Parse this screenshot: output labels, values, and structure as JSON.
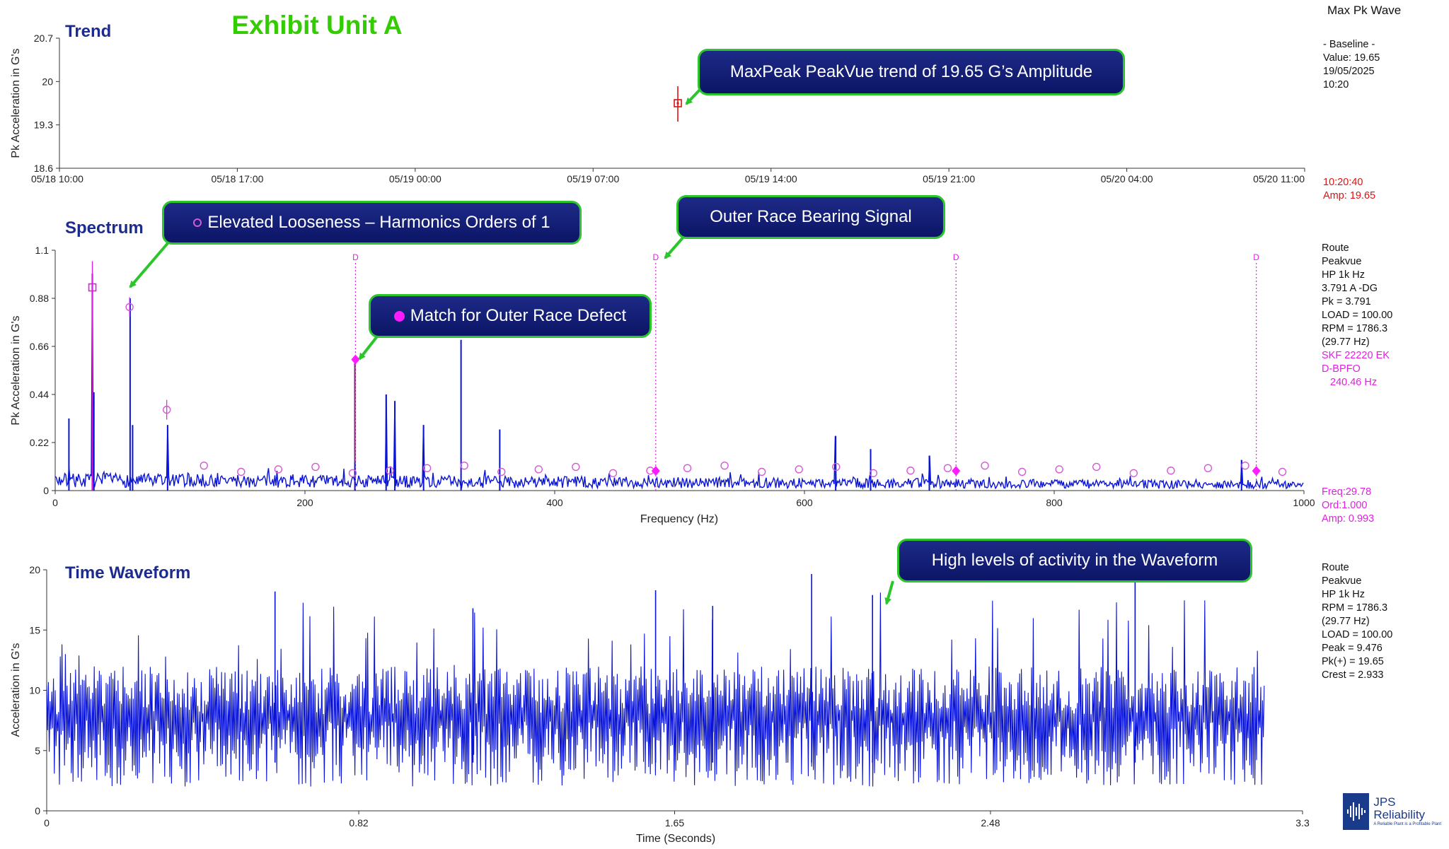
{
  "exhibit_title": "Exhibit Unit A",
  "colors": {
    "exhibit": "#33cc00",
    "panel_title": "#1b2b8f",
    "series": "#0a14d6",
    "magenta": "#e020e0",
    "red": "#dd1111",
    "callout_border": "#2bc62b",
    "arrow": "#2bc62b"
  },
  "trend": {
    "title": "Trend",
    "ylabel": "Pk Acceleration in G's",
    "right_header": "Max Pk Wave",
    "baseline_lines": [
      "- Baseline -",
      "Value: 19.65",
      "19/05/2025",
      "10:20"
    ],
    "cursor_lines": [
      "10:20:40",
      "Amp: 19.65"
    ]
  },
  "spectrum": {
    "title": "Spectrum",
    "xlabel": "Frequency (Hz)",
    "ylabel": "Pk Acceleration in G's",
    "info_lines": [
      "Route",
      "Peakvue",
      "HP 1k Hz",
      "3.791 A -DG",
      "Pk = 3.791",
      "LOAD = 100.00",
      "RPM = 1786.3",
      "(29.77 Hz)"
    ],
    "bearing_lines": [
      "SKF 22220 EK",
      "D-BPFO",
      "240.46 Hz"
    ],
    "cursor_lines": [
      "Freq:29.78",
      "Ord:1.000",
      "Amp: 0.993"
    ],
    "fault_marker_label": "D"
  },
  "waveform": {
    "title": "Time Waveform",
    "xlabel": "Time (Seconds)",
    "ylabel": "Acceleration in G's",
    "info_lines": [
      "Route",
      "Peakvue",
      "HP 1k Hz",
      "RPM = 1786.3",
      "(29.77 Hz)",
      "LOAD = 100.00",
      "Peak = 9.476",
      "Pk(+) = 19.65",
      "Crest = 2.933"
    ]
  },
  "callouts": {
    "trend": "MaxPeak PeakVue trend of 19.65 G’s Amplitude",
    "looseness": "Elevated Looseness – Harmonics Orders of 1",
    "outer_race_signal": "Outer Race Bearing Signal",
    "match": "Match for Outer Race Defect",
    "waveform": "High levels  of activity in the Waveform"
  },
  "logo": {
    "name": "JPS Reliability",
    "tagline": "A Reliable Plant is a Profitable Plant"
  },
  "chart_data": [
    {
      "type": "scatter",
      "panel": "trend",
      "title": "Trend",
      "ylabel": "Pk Acceleration in G's",
      "x_ticks": [
        "05/18 10:00",
        "05/18 17:00",
        "05/19 00:00",
        "05/19 07:00",
        "05/19 14:00",
        "05/19 21:00",
        "05/20 04:00",
        "05/20 11:00"
      ],
      "x_range_hours": [
        0,
        49
      ],
      "y_ticks": [
        "18.6",
        "19.3",
        "20",
        "20.7"
      ],
      "ylim": [
        18.6,
        20.7
      ],
      "points": [
        {
          "x": "05/19 10:20",
          "y": 19.65
        }
      ],
      "grid": false
    },
    {
      "type": "line",
      "panel": "spectrum",
      "title": "Spectrum",
      "xlabel": "Frequency (Hz)",
      "ylabel": "Pk Acceleration in G's",
      "xlim": [
        0,
        1000
      ],
      "x_ticks": [
        0,
        200,
        400,
        600,
        800,
        1000
      ],
      "ylim": [
        0,
        1.1
      ],
      "y_ticks": [
        "0",
        "0.22",
        "0.44",
        "0.66",
        "0.88",
        "1.1"
      ],
      "noise_floor": 0.05,
      "peaks": [
        {
          "x": 11,
          "y": 0.33
        },
        {
          "x": 29.78,
          "y": 0.993
        },
        {
          "x": 31,
          "y": 0.45
        },
        {
          "x": 60,
          "y": 0.88
        },
        {
          "x": 62,
          "y": 0.3
        },
        {
          "x": 90,
          "y": 0.3
        },
        {
          "x": 240,
          "y": 0.6
        },
        {
          "x": 265,
          "y": 0.44
        },
        {
          "x": 272,
          "y": 0.41
        },
        {
          "x": 295,
          "y": 0.3
        },
        {
          "x": 325,
          "y": 0.69
        },
        {
          "x": 356,
          "y": 0.28
        },
        {
          "x": 625,
          "y": 0.25
        },
        {
          "x": 653,
          "y": 0.19
        },
        {
          "x": 700,
          "y": 0.16
        },
        {
          "x": 950,
          "y": 0.14
        }
      ],
      "harmonic_markers_hz": [
        29.78,
        59.56,
        89.34,
        119.12,
        148.9,
        178.68,
        208.46,
        238.24,
        268.02,
        297.8,
        327.58,
        357.36,
        387.14,
        416.92,
        446.7,
        476.48,
        506.26,
        536.04,
        565.82,
        595.6,
        625.38,
        655.16,
        684.94,
        714.72,
        744.5,
        774.28,
        804.06,
        833.84,
        863.62,
        893.4,
        923.18,
        952.96,
        982.74
      ],
      "fault_frequencies_hz": [
        240.46,
        480.92,
        721.38,
        961.84
      ],
      "cursor": {
        "freq": 29.78,
        "order": 1.0,
        "amp": 0.993
      }
    },
    {
      "type": "line",
      "panel": "waveform",
      "title": "Time Waveform",
      "xlabel": "Time (Seconds)",
      "ylabel": "Acceleration in G's",
      "xlim": [
        0,
        3.3
      ],
      "x_ticks": [
        "0",
        "0.82",
        "1.65",
        "2.48",
        "3.3"
      ],
      "ylim": [
        0,
        20
      ],
      "y_ticks": [
        0,
        5,
        10,
        15,
        20
      ],
      "data_end_s": 3.2,
      "typical_range": [
        2,
        12
      ],
      "peak_pos": 19.65,
      "notable_peaks": [
        {
          "x": 0.6,
          "y": 18.2
        },
        {
          "x": 1.12,
          "y": 16.8
        },
        {
          "x": 1.6,
          "y": 18.3
        },
        {
          "x": 1.75,
          "y": 17.0
        },
        {
          "x": 2.01,
          "y": 19.65
        },
        {
          "x": 2.17,
          "y": 17.9
        },
        {
          "x": 2.86,
          "y": 19.2
        }
      ]
    }
  ]
}
